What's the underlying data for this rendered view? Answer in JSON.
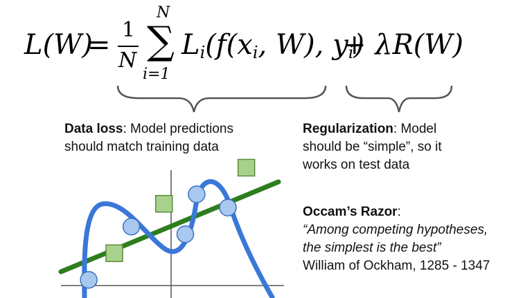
{
  "equation": {
    "lhs": "L(W)",
    "equals": "=",
    "frac_num": "1",
    "frac_den": "N",
    "sum_symbol": "∑",
    "sum_upper": "N",
    "sum_lower": "i=1",
    "term_L": "L",
    "term_L_sub": "i",
    "term_open": "(f(x",
    "term_x_sub": "i",
    "term_mid": ", W), y",
    "term_y_sub": "i",
    "term_close": ")",
    "reg_term": "+ λR(W)"
  },
  "data_loss": {
    "label": "Data loss",
    "text_line1": ": Model predictions",
    "text_line2": "should match training data"
  },
  "regularization": {
    "label": "Regularization",
    "text_line1": ": Model",
    "text_line2": "should be “simple”, so it",
    "text_line3": "works on test data"
  },
  "occam": {
    "label": "Occam’s Razor",
    "label_suffix": ":",
    "quote_line1": "“Among competing hypotheses,",
    "quote_line2": "the simplest is the best”",
    "attribution": "William of Ockham, 1285 - 1347"
  },
  "colors": {
    "curve": "#3a78d8",
    "line": "#2e7d1e",
    "circle_fill": "#a8c8f0",
    "circle_stroke": "#3a6fc0",
    "square_fill": "#a9d18e",
    "square_stroke": "#5a8a3a",
    "axis": "#555555",
    "brace": "#555555"
  },
  "plot": {
    "blue_points": [
      {
        "x": -2.9,
        "y": 0.15
      },
      {
        "x": -1.4,
        "y": 1.55
      },
      {
        "x": 0.5,
        "y": 1.35
      },
      {
        "x": 0.9,
        "y": 2.4
      },
      {
        "x": 2.0,
        "y": 2.05
      }
    ],
    "green_points": [
      {
        "x": -2.0,
        "y": 0.85
      },
      {
        "x": -0.25,
        "y": 2.15
      },
      {
        "x": 2.65,
        "y": 3.1
      }
    ]
  }
}
